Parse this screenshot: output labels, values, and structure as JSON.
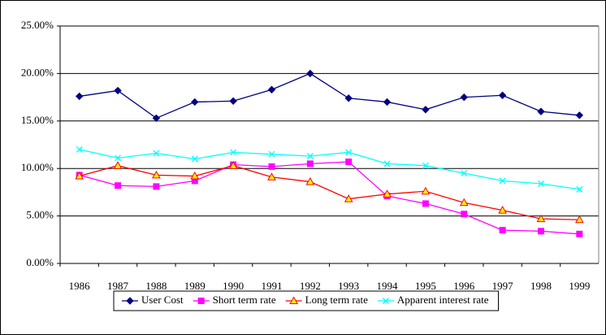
{
  "chart_data": {
    "type": "line",
    "categories": [
      "1986",
      "1987",
      "1988",
      "1989",
      "1990",
      "1991",
      "1992",
      "1993",
      "1994",
      "1995",
      "1996",
      "1997",
      "1998",
      "1999"
    ],
    "series": [
      {
        "name": "User Cost",
        "color": "#000080",
        "marker": "diamond",
        "values": [
          17.6,
          18.2,
          15.3,
          17.0,
          17.1,
          18.3,
          20.0,
          17.4,
          17.0,
          16.2,
          17.5,
          17.7,
          16.0,
          15.6
        ]
      },
      {
        "name": "Short term rate",
        "color": "#ff00ff",
        "marker": "square",
        "values": [
          9.3,
          8.2,
          8.1,
          8.7,
          10.4,
          10.2,
          10.5,
          10.7,
          7.1,
          6.3,
          5.2,
          3.5,
          3.4,
          3.1
        ]
      },
      {
        "name": "Long term rate",
        "color": "#ff0000",
        "marker": "triangle",
        "marker_fill": "#ffff00",
        "values": [
          9.2,
          10.3,
          9.3,
          9.2,
          10.3,
          9.1,
          8.6,
          6.8,
          7.3,
          7.6,
          6.4,
          5.6,
          4.7,
          4.6
        ]
      },
      {
        "name": "Apparent interest rate",
        "color": "#00ffff",
        "marker": "x",
        "values": [
          12.0,
          11.1,
          11.6,
          11.0,
          11.7,
          11.5,
          11.3,
          11.7,
          10.5,
          10.3,
          9.5,
          8.7,
          8.4,
          7.8
        ]
      }
    ],
    "ylim": [
      0,
      25
    ],
    "yticks": [
      {
        "value": 0,
        "label": "0.00%"
      },
      {
        "value": 5,
        "label": "5.00%"
      },
      {
        "value": 10,
        "label": "10.00%"
      },
      {
        "value": 15,
        "label": "15.00%"
      },
      {
        "value": 20,
        "label": "20.00%"
      },
      {
        "value": 25,
        "label": "25.00%"
      }
    ],
    "grid": true,
    "legend": "bottom"
  }
}
